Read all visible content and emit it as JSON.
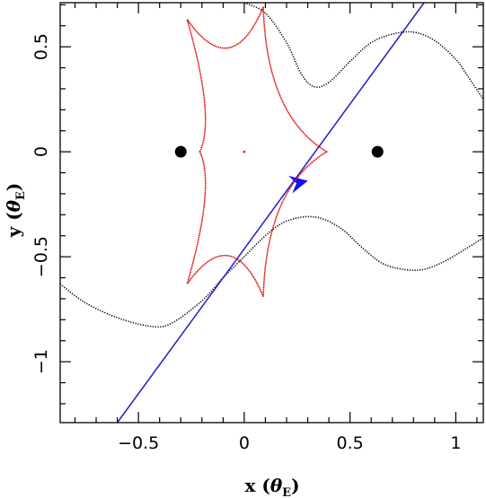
{
  "chart_data": {
    "type": "scatter",
    "xlabel": {
      "prefix": "x (",
      "symbol": "θ",
      "sub": "E",
      "suffix": ")"
    },
    "ylabel": {
      "prefix": "y (",
      "symbol": "θ",
      "sub": "E",
      "suffix": ")"
    },
    "xlim": [
      -0.87,
      1.13
    ],
    "ylim": [
      -1.29,
      0.71
    ],
    "xticks": [
      {
        "value": -0.5,
        "label": "−0.5"
      },
      {
        "value": 0,
        "label": "0"
      },
      {
        "value": 0.5,
        "label": "0.5"
      },
      {
        "value": 1,
        "label": "1"
      }
    ],
    "yticks": [
      {
        "value": -1,
        "label": "−1"
      },
      {
        "value": -0.5,
        "label": "−0.5"
      },
      {
        "value": 0,
        "label": "0"
      },
      {
        "value": 0.5,
        "label": "0.5"
      }
    ],
    "x_minor_step": 0.1,
    "y_minor_step": 0.1,
    "lens_masses": [
      {
        "x": -0.3,
        "y": 0
      },
      {
        "x": 0.63,
        "y": 0
      }
    ],
    "caustic": {
      "color": "#e00000",
      "cusps": [
        {
          "x": -0.21,
          "y": 0.0
        },
        {
          "x": -0.27,
          "y": 0.63
        },
        {
          "x": 0.09,
          "y": 0.69
        },
        {
          "x": 0.39,
          "y": 0.0
        },
        {
          "x": 0.09,
          "y": -0.69
        },
        {
          "x": -0.27,
          "y": -0.63
        }
      ],
      "extra_point": {
        "x": 0.0,
        "y": 0.0
      }
    },
    "critical_curve": {
      "color": "#000000",
      "upper": [
        [
          0.0,
          0.71
        ],
        [
          0.1,
          0.66
        ],
        [
          0.2,
          0.52
        ],
        [
          0.27,
          0.37
        ],
        [
          0.33,
          0.31
        ],
        [
          0.4,
          0.33
        ],
        [
          0.5,
          0.43
        ],
        [
          0.6,
          0.52
        ],
        [
          0.7,
          0.56
        ],
        [
          0.8,
          0.57
        ],
        [
          0.9,
          0.53
        ],
        [
          1.0,
          0.44
        ],
        [
          1.05,
          0.37
        ],
        [
          1.13,
          0.25
        ]
      ],
      "lower": [
        [
          -0.87,
          -0.63
        ],
        [
          -0.75,
          -0.72
        ],
        [
          -0.6,
          -0.79
        ],
        [
          -0.45,
          -0.83
        ],
        [
          -0.35,
          -0.82
        ],
        [
          -0.2,
          -0.71
        ],
        [
          -0.1,
          -0.6
        ],
        [
          0.0,
          -0.5
        ],
        [
          0.1,
          -0.4
        ],
        [
          0.2,
          -0.33
        ],
        [
          0.33,
          -0.31
        ],
        [
          0.45,
          -0.36
        ],
        [
          0.55,
          -0.45
        ],
        [
          0.65,
          -0.53
        ],
        [
          0.75,
          -0.56
        ],
        [
          0.85,
          -0.56
        ],
        [
          0.95,
          -0.52
        ],
        [
          1.05,
          -0.46
        ],
        [
          1.13,
          -0.41
        ]
      ]
    },
    "trajectory": {
      "color": "#2020c0",
      "start": {
        "x": -0.6,
        "y": -1.29
      },
      "end": {
        "x": 0.85,
        "y": 0.71
      },
      "arrow": {
        "x": 0.25,
        "y": -0.13,
        "color": "#1010ff"
      }
    }
  }
}
